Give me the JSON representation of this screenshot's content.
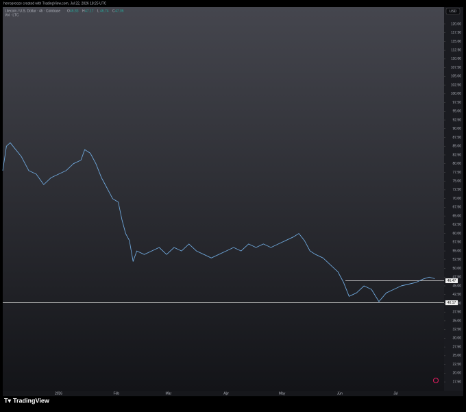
{
  "header": "herropreoze created with TradingView.com, Jul 22, 2026 18:25 UTC",
  "footer": "TradingView",
  "chart_data": {
    "type": "line",
    "title": "Litecoin / U.S. Dollar · 4h · Coinbase",
    "subtitle": "Vol · LTC",
    "currency": "USD",
    "ohlc": [
      {
        "label": "O",
        "value": 46.83
      },
      {
        "label": "H",
        "value": 47.17
      },
      {
        "label": "L",
        "value": 46.74
      },
      {
        "label": "C",
        "value": 47.06
      }
    ],
    "x": [
      0,
      2,
      4,
      7,
      10,
      14,
      18,
      22,
      26,
      30,
      34,
      38,
      42,
      44,
      47,
      50,
      53,
      56,
      59,
      62,
      64,
      66,
      68,
      70,
      72,
      76,
      80,
      84,
      88,
      92,
      96,
      100,
      104,
      108,
      112,
      116,
      120,
      124,
      128,
      132,
      136,
      140,
      144,
      148,
      152,
      156,
      159,
      162,
      165,
      168,
      172,
      176,
      180,
      183,
      186,
      190,
      194,
      198,
      202,
      206,
      210,
      214,
      218,
      222,
      226,
      229,
      232
    ],
    "series": [
      {
        "name": "LTCUSD",
        "color": "#6fa8dc",
        "values": [
          78,
          85,
          86,
          84,
          82,
          78,
          77,
          74,
          76,
          77,
          78,
          80,
          81,
          84,
          83,
          80,
          76,
          73,
          70,
          69,
          64,
          60,
          58,
          52,
          55,
          54,
          55,
          56,
          54,
          56,
          55,
          57,
          55,
          54,
          53,
          54,
          55,
          56,
          55,
          57,
          56,
          57,
          56,
          57,
          58,
          59,
          60,
          58,
          55,
          54,
          53,
          51,
          49,
          46,
          42,
          43,
          45,
          44,
          40.5,
          43,
          44,
          45,
          45.5,
          46,
          47,
          47.5,
          47.06
        ]
      }
    ],
    "xlim": [
      0,
      237
    ],
    "xticks": [
      {
        "value": 30,
        "label": "2026"
      },
      {
        "value": 61,
        "label": "Feb"
      },
      {
        "value": 89,
        "label": "Mar"
      },
      {
        "value": 120,
        "label": "Apr"
      },
      {
        "value": 150,
        "label": "May"
      },
      {
        "value": 181,
        "label": "Jun"
      },
      {
        "value": 211,
        "label": "Jul"
      }
    ],
    "ylim": [
      15.75,
      124.9
    ],
    "yticks": [
      {
        "value": 120,
        "label": "120.00"
      },
      {
        "value": 117.5,
        "label": "117.50"
      },
      {
        "value": 115,
        "label": "115.00"
      },
      {
        "value": 112.5,
        "label": "112.50"
      },
      {
        "value": 110,
        "label": "110.00"
      },
      {
        "value": 107.5,
        "label": "107.50"
      },
      {
        "value": 105,
        "label": "105.00"
      },
      {
        "value": 102.5,
        "label": "102.50"
      },
      {
        "value": 100,
        "label": "100.00"
      },
      {
        "value": 97.5,
        "label": "97.50"
      },
      {
        "value": 95,
        "label": "95.00"
      },
      {
        "value": 92.5,
        "label": "92.50"
      },
      {
        "value": 90,
        "label": "90.00"
      },
      {
        "value": 87.5,
        "label": "87.50"
      },
      {
        "value": 85,
        "label": "85.00"
      },
      {
        "value": 82.5,
        "label": "82.50"
      },
      {
        "value": 80,
        "label": "80.00"
      },
      {
        "value": 77.5,
        "label": "77.50"
      },
      {
        "value": 75,
        "label": "75.00"
      },
      {
        "value": 72.5,
        "label": "72.50"
      },
      {
        "value": 70,
        "label": "70.00"
      },
      {
        "value": 67.5,
        "label": "67.50"
      },
      {
        "value": 65,
        "label": "65.00"
      },
      {
        "value": 62.5,
        "label": "62.50"
      },
      {
        "value": 60,
        "label": "60.00"
      },
      {
        "value": 57.5,
        "label": "57.50"
      },
      {
        "value": 55,
        "label": "55.00"
      },
      {
        "value": 52.5,
        "label": "52.50"
      },
      {
        "value": 50,
        "label": "50.00"
      },
      {
        "value": 47.5,
        "label": "47.50"
      },
      {
        "value": 45,
        "label": "45.00"
      },
      {
        "value": 42.5,
        "label": "42.50"
      },
      {
        "value": 40,
        "label": "40.00"
      },
      {
        "value": 37.5,
        "label": "37.50"
      },
      {
        "value": 35,
        "label": "35.00"
      },
      {
        "value": 32.5,
        "label": "32.50"
      },
      {
        "value": 30,
        "label": "30.00"
      },
      {
        "value": 27.5,
        "label": "27.50"
      },
      {
        "value": 25,
        "label": "25.00"
      },
      {
        "value": 22.5,
        "label": "22.50"
      },
      {
        "value": 20,
        "label": "20.00"
      },
      {
        "value": 17.5,
        "label": "17.50"
      }
    ],
    "hlines": [
      {
        "value": 46.47,
        "from": 184
      },
      {
        "value": 40.17,
        "from": 0
      }
    ],
    "grid": false
  }
}
